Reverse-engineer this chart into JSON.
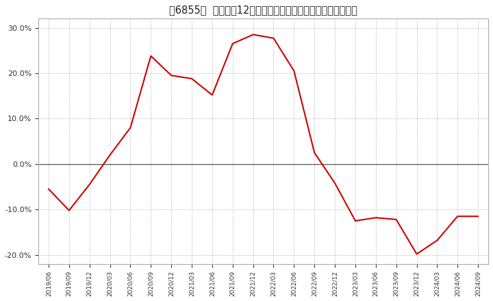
{
  "title": "［6855］  売上高の12か月移動合計の対前年同期増減率の推移",
  "line_color": "#cc0000",
  "background_color": "#ffffff",
  "plot_bg_color": "#ffffff",
  "grid_color": "#aaaaaa",
  "zero_line_color": "#555555",
  "ylim": [
    -0.22,
    0.32
  ],
  "yticks": [
    -0.2,
    -0.1,
    0.0,
    0.1,
    0.2,
    0.3
  ],
  "dates": [
    "2019/06",
    "2019/09",
    "2019/12",
    "2020/03",
    "2020/06",
    "2020/09",
    "2020/12",
    "2021/03",
    "2021/06",
    "2021/09",
    "2021/12",
    "2022/03",
    "2022/06",
    "2022/09",
    "2022/12",
    "2023/03",
    "2023/06",
    "2023/09",
    "2023/12",
    "2024/03",
    "2024/06",
    "2024/09"
  ],
  "values": [
    -0.055,
    -0.102,
    -0.045,
    0.02,
    0.08,
    0.238,
    0.195,
    0.188,
    0.152,
    0.265,
    0.285,
    0.277,
    0.205,
    0.025,
    -0.042,
    -0.125,
    -0.118,
    -0.122,
    -0.198,
    -0.168,
    -0.115,
    -0.115
  ]
}
